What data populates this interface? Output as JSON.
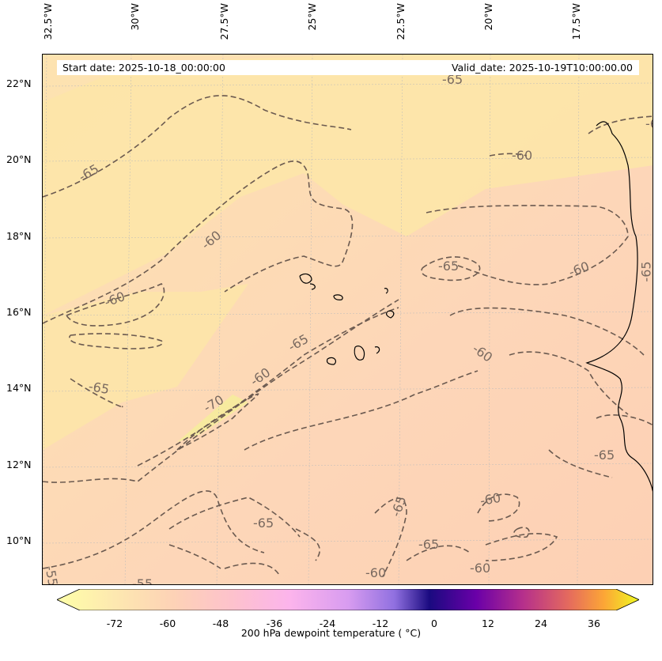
{
  "map": {
    "start_date": "Start date: 2025-10-18_00:00:00",
    "valid_date": "Valid_date: 2025-10-19T10:00:00.00",
    "lon_labels": [
      "32.5°W",
      "30°W",
      "27.5°W",
      "25°W",
      "22.5°W",
      "20°W",
      "17.5°W"
    ],
    "lat_labels": [
      "22°N",
      "20°N",
      "18°N",
      "16°N",
      "14°N",
      "12°N",
      "10°N"
    ],
    "contour_labels": [
      "-65",
      "-60",
      "-65",
      "-60",
      "-60",
      "-65",
      "-60",
      "-65",
      "-70",
      "-60",
      "-65",
      "-60",
      "-65",
      "-60",
      "-65",
      "-65",
      "-65",
      "-65",
      "-60",
      "-55",
      "-55",
      "-60",
      "-6"
    ],
    "colors": {
      "background_fill": "#fdd8b4",
      "yellow_zone": "#fde6a8",
      "contour_line": "#6b5a50",
      "contour_label": "#7a6a60"
    }
  },
  "colorbar": {
    "label": "200 hPa dewpoint temperature ($^{\\circ}$C)",
    "label_display": "200 hPa dewpoint temperature ( °C)",
    "ticks": [
      "-72",
      "-60",
      "-48",
      "-36",
      "-24",
      "-12",
      "0",
      "12",
      "24",
      "36"
    ],
    "range": [
      -84,
      48
    ],
    "colors": [
      "#ffffa8",
      "#fde3a8",
      "#fdd0b8",
      "#fdc0d0",
      "#fbb0f0",
      "#d098f0",
      "#8060e0",
      "#2a0a90",
      "#6a00a8",
      "#b52f8c",
      "#e56b5d",
      "#fca636",
      "#f0f921"
    ]
  }
}
